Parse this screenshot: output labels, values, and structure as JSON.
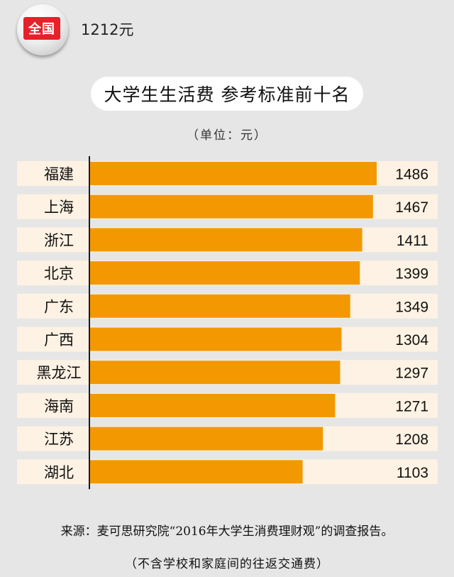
{
  "badge": {
    "label": "全国",
    "value": "1212元"
  },
  "title": "大学生生活费 参考标准前十名",
  "unit_label": "（单位：元）",
  "source_text": "来源：麦可思研究院“2016年大学生消费理财观”的调查报告。",
  "note_text": "（不含学校和家庭间的往返交通费）",
  "colors": {
    "bar": "#f39800",
    "row_background": "#fdf2e3",
    "page_background": "#e6e6e6",
    "badge_label": "#e8202a"
  },
  "chart_data": {
    "type": "bar",
    "orientation": "horizontal",
    "title": "大学生生活费 参考标准前十名",
    "unit": "（单位：元）",
    "categories": [
      "福建",
      "上海",
      "浙江",
      "北京",
      "广东",
      "广西",
      "黑龙江",
      "海南",
      "江苏",
      "湖北"
    ],
    "values": [
      1486,
      1467,
      1411,
      1399,
      1349,
      1304,
      1297,
      1271,
      1208,
      1103
    ],
    "value_labels": [
      "1486",
      "1467",
      "1411",
      "1399",
      "1349",
      "1304",
      "1297",
      "1271",
      "1208",
      "1103"
    ],
    "xlim": [
      0,
      1486
    ],
    "grid": false,
    "legend": "none"
  }
}
